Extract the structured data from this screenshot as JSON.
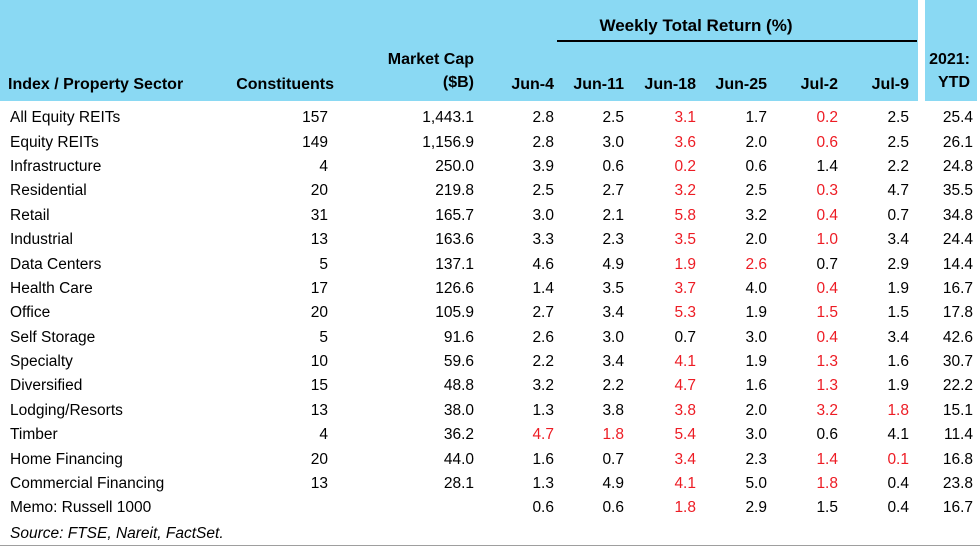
{
  "colors": {
    "header_bg": "#8ad9f3",
    "negative_text": "#ed1c24",
    "text": "#000000",
    "bottom_rule": "#9e9e9e"
  },
  "header": {
    "group_title": "Weekly Total Return (%)",
    "col_sector": "Index / Property Sector",
    "col_constituents": "Constituents",
    "col_market_cap_line1": "Market Cap",
    "col_market_cap_line2": "($B)",
    "week_cols": [
      "Jun-4",
      "Jun-11",
      "Jun-18",
      "Jun-25",
      "Jul-2",
      "Jul-9"
    ],
    "ytd_line1": "2021:",
    "ytd_line2": "YTD"
  },
  "table": {
    "rows": [
      {
        "sector": "All Equity REITs",
        "constituents": "157",
        "market_cap": "1,443.1",
        "weekly": [
          {
            "v": "2.8",
            "neg": false
          },
          {
            "v": "2.5",
            "neg": false
          },
          {
            "v": "3.1",
            "neg": true
          },
          {
            "v": "1.7",
            "neg": false
          },
          {
            "v": "0.2",
            "neg": true
          },
          {
            "v": "2.5",
            "neg": false
          }
        ],
        "ytd": "25.4"
      },
      {
        "sector": "Equity REITs",
        "constituents": "149",
        "market_cap": "1,156.9",
        "weekly": [
          {
            "v": "2.8",
            "neg": false
          },
          {
            "v": "3.0",
            "neg": false
          },
          {
            "v": "3.6",
            "neg": true
          },
          {
            "v": "2.0",
            "neg": false
          },
          {
            "v": "0.6",
            "neg": true
          },
          {
            "v": "2.5",
            "neg": false
          }
        ],
        "ytd": "26.1"
      },
      {
        "sector": "Infrastructure",
        "constituents": "4",
        "market_cap": "250.0",
        "weekly": [
          {
            "v": "3.9",
            "neg": false
          },
          {
            "v": "0.6",
            "neg": false
          },
          {
            "v": "0.2",
            "neg": true
          },
          {
            "v": "0.6",
            "neg": false
          },
          {
            "v": "1.4",
            "neg": false
          },
          {
            "v": "2.2",
            "neg": false
          }
        ],
        "ytd": "24.8"
      },
      {
        "sector": "Residential",
        "constituents": "20",
        "market_cap": "219.8",
        "weekly": [
          {
            "v": "2.5",
            "neg": false
          },
          {
            "v": "2.7",
            "neg": false
          },
          {
            "v": "3.2",
            "neg": true
          },
          {
            "v": "2.5",
            "neg": false
          },
          {
            "v": "0.3",
            "neg": true
          },
          {
            "v": "4.7",
            "neg": false
          }
        ],
        "ytd": "35.5"
      },
      {
        "sector": "Retail",
        "constituents": "31",
        "market_cap": "165.7",
        "weekly": [
          {
            "v": "3.0",
            "neg": false
          },
          {
            "v": "2.1",
            "neg": false
          },
          {
            "v": "5.8",
            "neg": true
          },
          {
            "v": "3.2",
            "neg": false
          },
          {
            "v": "0.4",
            "neg": true
          },
          {
            "v": "0.7",
            "neg": false
          }
        ],
        "ytd": "34.8"
      },
      {
        "sector": "Industrial",
        "constituents": "13",
        "market_cap": "163.6",
        "weekly": [
          {
            "v": "3.3",
            "neg": false
          },
          {
            "v": "2.3",
            "neg": false
          },
          {
            "v": "3.5",
            "neg": true
          },
          {
            "v": "2.0",
            "neg": false
          },
          {
            "v": "1.0",
            "neg": true
          },
          {
            "v": "3.4",
            "neg": false
          }
        ],
        "ytd": "24.4"
      },
      {
        "sector": "Data Centers",
        "constituents": "5",
        "market_cap": "137.1",
        "weekly": [
          {
            "v": "4.6",
            "neg": false
          },
          {
            "v": "4.9",
            "neg": false
          },
          {
            "v": "1.9",
            "neg": true
          },
          {
            "v": "2.6",
            "neg": true
          },
          {
            "v": "0.7",
            "neg": false
          },
          {
            "v": "2.9",
            "neg": false
          }
        ],
        "ytd": "14.4"
      },
      {
        "sector": "Health Care",
        "constituents": "17",
        "market_cap": "126.6",
        "weekly": [
          {
            "v": "1.4",
            "neg": false
          },
          {
            "v": "3.5",
            "neg": false
          },
          {
            "v": "3.7",
            "neg": true
          },
          {
            "v": "4.0",
            "neg": false
          },
          {
            "v": "0.4",
            "neg": true
          },
          {
            "v": "1.9",
            "neg": false
          }
        ],
        "ytd": "16.7"
      },
      {
        "sector": "Office",
        "constituents": "20",
        "market_cap": "105.9",
        "weekly": [
          {
            "v": "2.7",
            "neg": false
          },
          {
            "v": "3.4",
            "neg": false
          },
          {
            "v": "5.3",
            "neg": true
          },
          {
            "v": "1.9",
            "neg": false
          },
          {
            "v": "1.5",
            "neg": true
          },
          {
            "v": "1.5",
            "neg": false
          }
        ],
        "ytd": "17.8"
      },
      {
        "sector": "Self Storage",
        "constituents": "5",
        "market_cap": "91.6",
        "weekly": [
          {
            "v": "2.6",
            "neg": false
          },
          {
            "v": "3.0",
            "neg": false
          },
          {
            "v": "0.7",
            "neg": false
          },
          {
            "v": "3.0",
            "neg": false
          },
          {
            "v": "0.4",
            "neg": true
          },
          {
            "v": "3.4",
            "neg": false
          }
        ],
        "ytd": "42.6"
      },
      {
        "sector": "Specialty",
        "constituents": "10",
        "market_cap": "59.6",
        "weekly": [
          {
            "v": "2.2",
            "neg": false
          },
          {
            "v": "3.4",
            "neg": false
          },
          {
            "v": "4.1",
            "neg": true
          },
          {
            "v": "1.9",
            "neg": false
          },
          {
            "v": "1.3",
            "neg": true
          },
          {
            "v": "1.6",
            "neg": false
          }
        ],
        "ytd": "30.7"
      },
      {
        "sector": "Diversified",
        "constituents": "15",
        "market_cap": "48.8",
        "weekly": [
          {
            "v": "3.2",
            "neg": false
          },
          {
            "v": "2.2",
            "neg": false
          },
          {
            "v": "4.7",
            "neg": true
          },
          {
            "v": "1.6",
            "neg": false
          },
          {
            "v": "1.3",
            "neg": true
          },
          {
            "v": "1.9",
            "neg": false
          }
        ],
        "ytd": "22.2"
      },
      {
        "sector": "Lodging/Resorts",
        "constituents": "13",
        "market_cap": "38.0",
        "weekly": [
          {
            "v": "1.3",
            "neg": false
          },
          {
            "v": "3.8",
            "neg": false
          },
          {
            "v": "3.8",
            "neg": true
          },
          {
            "v": "2.0",
            "neg": false
          },
          {
            "v": "3.2",
            "neg": true
          },
          {
            "v": "1.8",
            "neg": true
          }
        ],
        "ytd": "15.1"
      },
      {
        "sector": "Timber",
        "constituents": "4",
        "market_cap": "36.2",
        "weekly": [
          {
            "v": "4.7",
            "neg": true
          },
          {
            "v": "1.8",
            "neg": true
          },
          {
            "v": "5.4",
            "neg": true
          },
          {
            "v": "3.0",
            "neg": false
          },
          {
            "v": "0.6",
            "neg": false
          },
          {
            "v": "4.1",
            "neg": false
          }
        ],
        "ytd": "11.4"
      },
      {
        "sector": "Home Financing",
        "constituents": "20",
        "market_cap": "44.0",
        "weekly": [
          {
            "v": "1.6",
            "neg": false
          },
          {
            "v": "0.7",
            "neg": false
          },
          {
            "v": "3.4",
            "neg": true
          },
          {
            "v": "2.3",
            "neg": false
          },
          {
            "v": "1.4",
            "neg": true
          },
          {
            "v": "0.1",
            "neg": true
          }
        ],
        "ytd": "16.8"
      },
      {
        "sector": "Commercial Financing",
        "constituents": "13",
        "market_cap": "28.1",
        "weekly": [
          {
            "v": "1.3",
            "neg": false
          },
          {
            "v": "4.9",
            "neg": false
          },
          {
            "v": "4.1",
            "neg": true
          },
          {
            "v": "5.0",
            "neg": false
          },
          {
            "v": "1.8",
            "neg": true
          },
          {
            "v": "0.4",
            "neg": false
          }
        ],
        "ytd": "23.8"
      },
      {
        "sector": "Memo: Russell 1000",
        "constituents": "",
        "market_cap": "",
        "weekly": [
          {
            "v": "0.6",
            "neg": false
          },
          {
            "v": "0.6",
            "neg": false
          },
          {
            "v": "1.8",
            "neg": true
          },
          {
            "v": "2.9",
            "neg": false
          },
          {
            "v": "1.5",
            "neg": false
          },
          {
            "v": "0.4",
            "neg": false
          }
        ],
        "ytd": "16.7"
      }
    ]
  },
  "footer": {
    "source": "Source: FTSE, Nareit, FactSet."
  },
  "chart_data": {
    "type": "table",
    "title": "Weekly Total Return (%)",
    "columns": [
      "Index / Property Sector",
      "Constituents",
      "Market Cap ($B)",
      "Jun-4",
      "Jun-11",
      "Jun-18",
      "Jun-25",
      "Jul-2",
      "Jul-9",
      "2021: YTD"
    ],
    "note": "Values rendered in red in the image are negative returns (shown without minus sign)",
    "rows": [
      [
        "All Equity REITs",
        157,
        1443.1,
        2.8,
        2.5,
        -3.1,
        1.7,
        -0.2,
        2.5,
        25.4
      ],
      [
        "Equity REITs",
        149,
        1156.9,
        2.8,
        3.0,
        -3.6,
        2.0,
        -0.6,
        2.5,
        26.1
      ],
      [
        "Infrastructure",
        4,
        250.0,
        3.9,
        0.6,
        -0.2,
        0.6,
        1.4,
        2.2,
        24.8
      ],
      [
        "Residential",
        20,
        219.8,
        2.5,
        2.7,
        -3.2,
        2.5,
        -0.3,
        4.7,
        35.5
      ],
      [
        "Retail",
        31,
        165.7,
        3.0,
        2.1,
        -5.8,
        3.2,
        -0.4,
        0.7,
        34.8
      ],
      [
        "Industrial",
        13,
        163.6,
        3.3,
        2.3,
        -3.5,
        2.0,
        -1.0,
        3.4,
        24.4
      ],
      [
        "Data Centers",
        5,
        137.1,
        4.6,
        4.9,
        -1.9,
        -2.6,
        0.7,
        2.9,
        14.4
      ],
      [
        "Health Care",
        17,
        126.6,
        1.4,
        3.5,
        -3.7,
        4.0,
        -0.4,
        1.9,
        16.7
      ],
      [
        "Office",
        20,
        105.9,
        2.7,
        3.4,
        -5.3,
        1.9,
        -1.5,
        1.5,
        17.8
      ],
      [
        "Self Storage",
        5,
        91.6,
        2.6,
        3.0,
        0.7,
        3.0,
        -0.4,
        3.4,
        42.6
      ],
      [
        "Specialty",
        10,
        59.6,
        2.2,
        3.4,
        -4.1,
        1.9,
        -1.3,
        1.6,
        30.7
      ],
      [
        "Diversified",
        15,
        48.8,
        3.2,
        2.2,
        -4.7,
        1.6,
        -1.3,
        1.9,
        22.2
      ],
      [
        "Lodging/Resorts",
        13,
        38.0,
        1.3,
        3.8,
        -3.8,
        2.0,
        -3.2,
        -1.8,
        15.1
      ],
      [
        "Timber",
        4,
        36.2,
        -4.7,
        -1.8,
        -5.4,
        3.0,
        0.6,
        4.1,
        11.4
      ],
      [
        "Home Financing",
        20,
        44.0,
        1.6,
        0.7,
        -3.4,
        2.3,
        -1.4,
        -0.1,
        16.8
      ],
      [
        "Commercial Financing",
        13,
        28.1,
        1.3,
        4.9,
        -4.1,
        5.0,
        -1.8,
        0.4,
        23.8
      ],
      [
        "Memo: Russell 1000",
        null,
        null,
        0.6,
        0.6,
        -1.8,
        2.9,
        1.5,
        0.4,
        16.7
      ]
    ],
    "source": "Source: FTSE, Nareit, FactSet."
  }
}
